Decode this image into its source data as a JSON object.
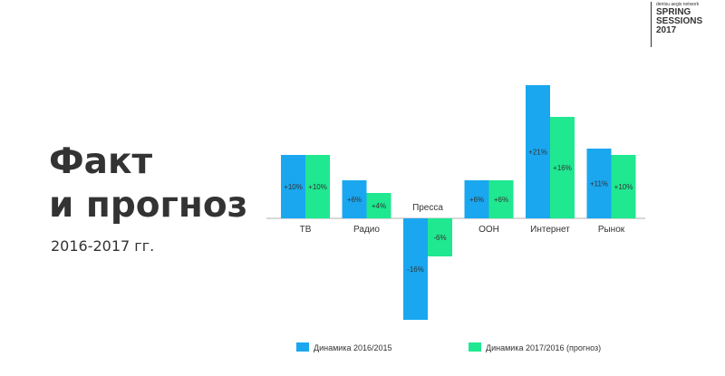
{
  "brand": {
    "network": "dentsu aegis network",
    "line1": "SPRING",
    "line2": "SESSIONS",
    "line3": "2017"
  },
  "title": {
    "line1": "Факт",
    "line2": "и прогноз"
  },
  "subtitle": "2016-2017 гг.",
  "colors": {
    "series1": "#1aa7f0",
    "series2": "#1fe890",
    "baseline": "#b0b0b0",
    "text": "#333333"
  },
  "chart_data": {
    "type": "bar",
    "categories": [
      "ТВ",
      "Радио",
      "Пресса",
      "OOH",
      "Интернет",
      "Рынок"
    ],
    "series": [
      {
        "name": "Динамика 2016/2015",
        "values": [
          10,
          6,
          -16,
          6,
          21,
          11
        ],
        "labels": [
          "+10%",
          "+6%",
          "-16%",
          "+6%",
          "+21%",
          "+11%"
        ]
      },
      {
        "name": "Динамика 2017/2016 (прогноз)",
        "values": [
          10,
          4,
          -6,
          6,
          16,
          10
        ],
        "labels": [
          "+10%",
          "+4%",
          "-6%",
          "+6%",
          "+16%",
          "+10%"
        ]
      }
    ],
    "legend_position": "bottom",
    "grid": false
  }
}
